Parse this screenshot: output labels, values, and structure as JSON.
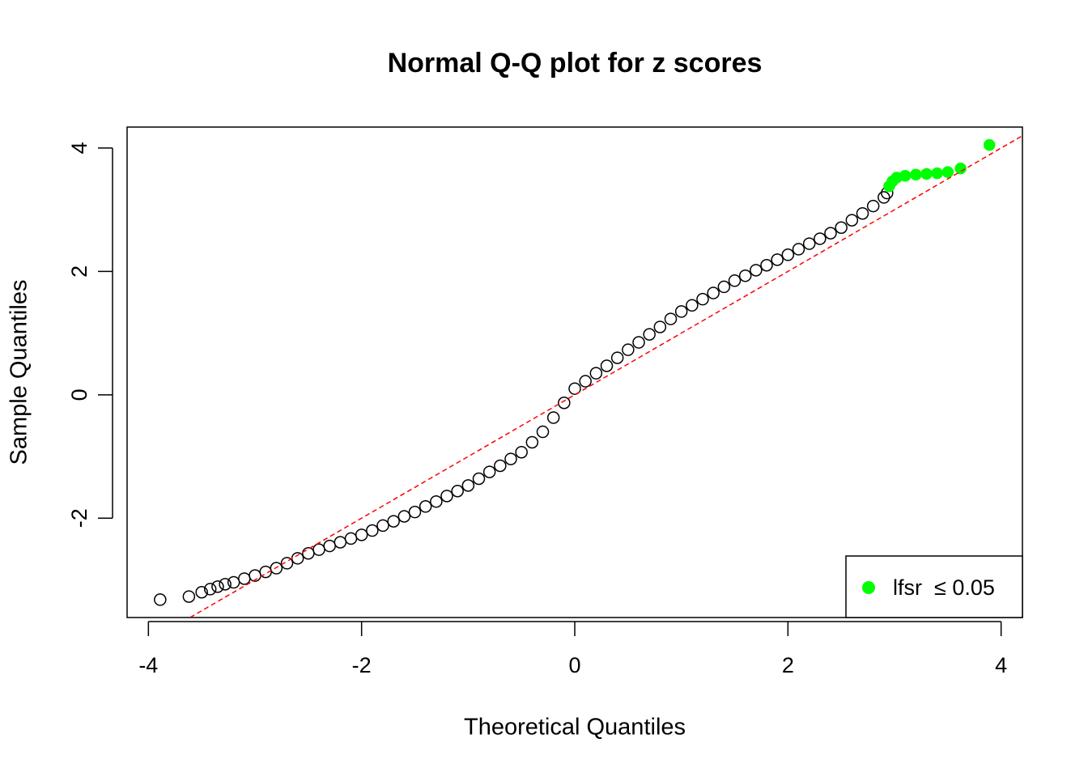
{
  "chart_data": {
    "type": "scatter",
    "title": "Normal Q-Q plot for z scores",
    "x_label": "Theoretical Quantiles",
    "y_label": "Sample Quantiles",
    "xlim": [
      -4.2,
      4.2
    ],
    "ylim": [
      -3.61,
      4.34
    ],
    "xticks": [
      -4,
      -2,
      0,
      2,
      4
    ],
    "yticks": [
      -2,
      0,
      2,
      4
    ],
    "legend_position": "bottomright",
    "reference_line": {
      "intercept": 0.0,
      "slope": 1.0,
      "color": "#ff0000"
    },
    "series": [
      {
        "color": "#000000",
        "marker": "open",
        "x": [
          -3.89,
          -3.62,
          -3.5,
          -3.42,
          -3.35,
          -3.28,
          -3.2,
          -3.1,
          -3.0,
          -2.9,
          -2.8,
          -2.7,
          -2.6,
          -2.5,
          -2.4,
          -2.3,
          -2.2,
          -2.1,
          -2.0,
          -1.9,
          -1.8,
          -1.7,
          -1.6,
          -1.5,
          -1.4,
          -1.3,
          -1.2,
          -1.1,
          -1.0,
          -0.9,
          -0.8,
          -0.7,
          -0.6,
          -0.5,
          -0.4,
          -0.3,
          -0.2,
          -0.1,
          0.0,
          0.1,
          0.2,
          0.3,
          0.4,
          0.5,
          0.6,
          0.7,
          0.8,
          0.9,
          1.0,
          1.1,
          1.2,
          1.3,
          1.4,
          1.5,
          1.6,
          1.7,
          1.8,
          1.9,
          2.0,
          2.1,
          2.2,
          2.3,
          2.4,
          2.5,
          2.6,
          2.7,
          2.8,
          2.9,
          2.93
        ],
        "y": [
          -3.32,
          -3.27,
          -3.2,
          -3.15,
          -3.11,
          -3.07,
          -3.04,
          -2.98,
          -2.93,
          -2.87,
          -2.81,
          -2.73,
          -2.65,
          -2.57,
          -2.51,
          -2.45,
          -2.39,
          -2.33,
          -2.27,
          -2.2,
          -2.12,
          -2.05,
          -1.97,
          -1.9,
          -1.81,
          -1.73,
          -1.64,
          -1.56,
          -1.47,
          -1.36,
          -1.25,
          -1.15,
          -1.04,
          -0.93,
          -0.77,
          -0.6,
          -0.37,
          -0.13,
          0.1,
          0.22,
          0.35,
          0.47,
          0.6,
          0.73,
          0.85,
          0.98,
          1.1,
          1.23,
          1.35,
          1.45,
          1.55,
          1.65,
          1.75,
          1.85,
          1.93,
          2.02,
          2.1,
          2.19,
          2.27,
          2.36,
          2.45,
          2.53,
          2.62,
          2.71,
          2.83,
          2.94,
          3.06,
          3.2,
          3.27
        ]
      },
      {
        "name": "lfsr  ≤ 0.05",
        "color": "#00ff00",
        "marker": "filled",
        "x": [
          2.95,
          2.98,
          3.02,
          3.1,
          3.2,
          3.3,
          3.4,
          3.5,
          3.62,
          3.89
        ],
        "y": [
          3.38,
          3.46,
          3.52,
          3.55,
          3.57,
          3.58,
          3.59,
          3.61,
          3.67,
          4.05
        ]
      }
    ]
  }
}
